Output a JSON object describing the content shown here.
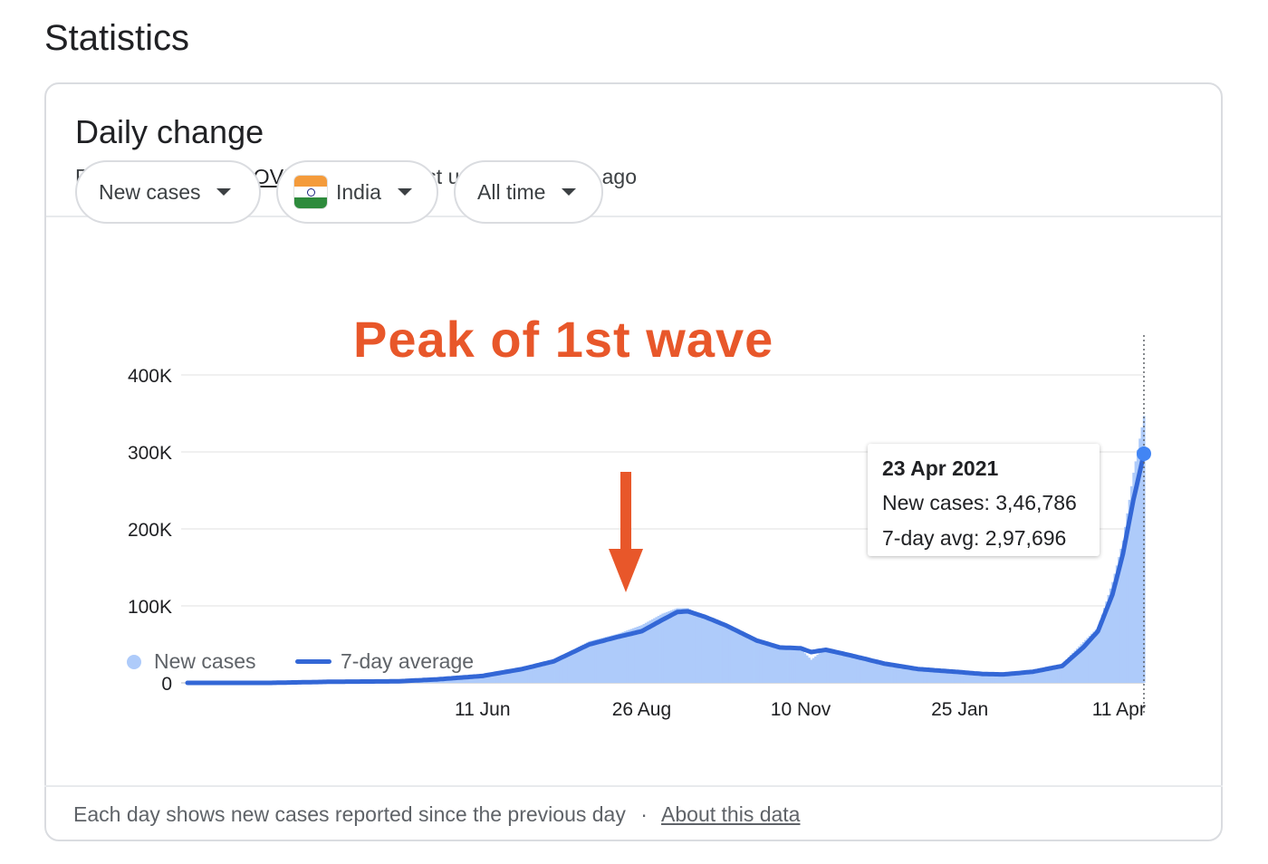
{
  "page_title": "Statistics",
  "card": {
    "title": "Daily change",
    "source_prefix": "From",
    "source_link": "JHU CSSE COVID-19 Data",
    "updated": "· Last updated: 2 days ago"
  },
  "filters": {
    "metric": "New cases",
    "country": "India",
    "range": "All time"
  },
  "annotation": "Peak of 1st wave",
  "tooltip": {
    "date": "23 Apr 2021",
    "new_cases": "New cases: 3,46,786",
    "avg": "7-day avg: 2,97,696"
  },
  "legend": {
    "bars": "New cases",
    "line": "7-day average"
  },
  "footer": {
    "text": "Each day shows new cases reported since the previous day",
    "separator": "·",
    "link": "About this data"
  },
  "colors": {
    "bars": "#aecbfa",
    "line": "#3367d6",
    "annotation": "#e8572a"
  },
  "chart_data": {
    "type": "bar",
    "xlabel": "",
    "ylabel": "",
    "ylim": [
      0,
      400000
    ],
    "y_ticks": [
      0,
      100000,
      200000,
      300000,
      400000
    ],
    "y_tick_labels": [
      "0",
      "100K",
      "200K",
      "300K",
      "400K"
    ],
    "x_ticks": [
      "2020-06-11",
      "2020-08-26",
      "2020-11-10",
      "2021-01-25",
      "2021-04-11"
    ],
    "x_tick_labels": [
      "11 Jun",
      "26 Aug",
      "10 Nov",
      "25 Jan",
      "11 Apr"
    ],
    "x_start": "2020-01-22",
    "x_end": "2021-04-23",
    "series": [
      {
        "name": "7-day average",
        "kind": "line",
        "points": [
          [
            "2020-01-22",
            0
          ],
          [
            "2020-03-01",
            10
          ],
          [
            "2020-04-01",
            1500
          ],
          [
            "2020-05-01",
            2000
          ],
          [
            "2020-05-20",
            4500
          ],
          [
            "2020-06-11",
            9000
          ],
          [
            "2020-06-30",
            18000
          ],
          [
            "2020-07-15",
            28000
          ],
          [
            "2020-08-01",
            50000
          ],
          [
            "2020-08-15",
            60000
          ],
          [
            "2020-08-26",
            67000
          ],
          [
            "2020-09-05",
            82000
          ],
          [
            "2020-09-12",
            92000
          ],
          [
            "2020-09-17",
            93000
          ],
          [
            "2020-09-25",
            86000
          ],
          [
            "2020-10-05",
            75000
          ],
          [
            "2020-10-20",
            55000
          ],
          [
            "2020-10-31",
            46000
          ],
          [
            "2020-11-10",
            45000
          ],
          [
            "2020-11-15",
            40000
          ],
          [
            "2020-11-22",
            43000
          ],
          [
            "2020-12-05",
            35000
          ],
          [
            "2020-12-20",
            25000
          ],
          [
            "2021-01-05",
            18000
          ],
          [
            "2021-01-25",
            14000
          ],
          [
            "2021-02-05",
            11500
          ],
          [
            "2021-02-15",
            11000
          ],
          [
            "2021-03-01",
            14500
          ],
          [
            "2021-03-15",
            22000
          ],
          [
            "2021-03-25",
            46000
          ],
          [
            "2021-04-01",
            67000
          ],
          [
            "2021-04-08",
            115000
          ],
          [
            "2021-04-13",
            168000
          ],
          [
            "2021-04-18",
            238000
          ],
          [
            "2021-04-23",
            297696
          ]
        ]
      },
      {
        "name": "New cases",
        "kind": "bars",
        "points": [
          [
            "2020-01-22",
            0
          ],
          [
            "2020-03-01",
            20
          ],
          [
            "2020-04-01",
            1800
          ],
          [
            "2020-05-01",
            2300
          ],
          [
            "2020-05-20",
            5500
          ],
          [
            "2020-06-11",
            10000
          ],
          [
            "2020-06-30",
            19000
          ],
          [
            "2020-07-15",
            30000
          ],
          [
            "2020-08-01",
            54000
          ],
          [
            "2020-08-15",
            64000
          ],
          [
            "2020-08-26",
            75000
          ],
          [
            "2020-09-05",
            90000
          ],
          [
            "2020-09-12",
            97000
          ],
          [
            "2020-09-17",
            97000
          ],
          [
            "2020-09-25",
            86000
          ],
          [
            "2020-10-05",
            74000
          ],
          [
            "2020-10-20",
            54000
          ],
          [
            "2020-10-31",
            48000
          ],
          [
            "2020-11-10",
            44000
          ],
          [
            "2020-11-15",
            30000
          ],
          [
            "2020-11-22",
            45000
          ],
          [
            "2020-12-05",
            36000
          ],
          [
            "2020-12-20",
            24000
          ],
          [
            "2021-01-05",
            18000
          ],
          [
            "2021-01-25",
            13000
          ],
          [
            "2021-02-05",
            12000
          ],
          [
            "2021-02-15",
            11500
          ],
          [
            "2021-03-01",
            15000
          ],
          [
            "2021-03-15",
            25000
          ],
          [
            "2021-03-25",
            53000
          ],
          [
            "2021-04-01",
            72000
          ],
          [
            "2021-04-08",
            131000
          ],
          [
            "2021-04-13",
            185000
          ],
          [
            "2021-04-18",
            273000
          ],
          [
            "2021-04-23",
            346786
          ]
        ]
      }
    ]
  }
}
